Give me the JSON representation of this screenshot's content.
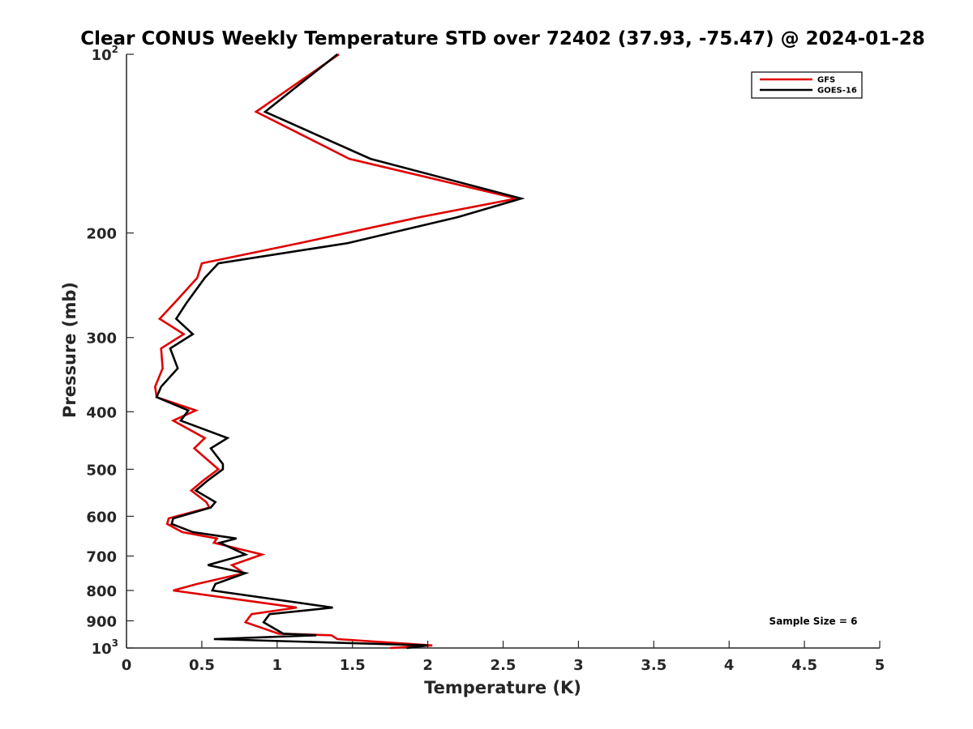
{
  "chart_data": {
    "type": "line",
    "title": "Clear CONUS Weekly Temperature STD over 72402 (37.93, -75.47) @ 2024-01-28",
    "xlabel": "Temperature (K)",
    "ylabel": "Pressure (mb)",
    "xlim": [
      0,
      5
    ],
    "ylim": [
      1000,
      100
    ],
    "y_scale": "log",
    "y_reversed": true,
    "grid": false,
    "legend_placement": "top-right",
    "annotation": "Sample Size = 6",
    "x_ticks": [
      {
        "value": 0,
        "label": "0"
      },
      {
        "value": 0.5,
        "label": "0.5"
      },
      {
        "value": 1,
        "label": "1"
      },
      {
        "value": 1.5,
        "label": "1.5"
      },
      {
        "value": 2,
        "label": "2"
      },
      {
        "value": 2.5,
        "label": "2.5"
      },
      {
        "value": 3,
        "label": "3"
      },
      {
        "value": 3.5,
        "label": "3.5"
      },
      {
        "value": 4,
        "label": "4"
      },
      {
        "value": 4.5,
        "label": "4.5"
      },
      {
        "value": 5,
        "label": "5"
      }
    ],
    "y_ticks": [
      {
        "value": 100,
        "label": "10",
        "sup": "2"
      },
      {
        "value": 200,
        "label": "200"
      },
      {
        "value": 300,
        "label": "300"
      },
      {
        "value": 400,
        "label": "400"
      },
      {
        "value": 500,
        "label": "500"
      },
      {
        "value": 600,
        "label": "600"
      },
      {
        "value": 700,
        "label": "700"
      },
      {
        "value": 800,
        "label": "800"
      },
      {
        "value": 900,
        "label": "900"
      },
      {
        "value": 1000,
        "label": "10",
        "sup": "3"
      }
    ],
    "series": [
      {
        "name": "GFS",
        "color": "#e00000",
        "points": [
          [
            1.41,
            100
          ],
          [
            0.86,
            125
          ],
          [
            1.48,
            150
          ],
          [
            2.59,
            175
          ],
          [
            1.95,
            188
          ],
          [
            1.15,
            208
          ],
          [
            0.5,
            225
          ],
          [
            0.47,
            238
          ],
          [
            0.32,
            262
          ],
          [
            0.22,
            279
          ],
          [
            0.38,
            296
          ],
          [
            0.23,
            313
          ],
          [
            0.24,
            338
          ],
          [
            0.19,
            363
          ],
          [
            0.2,
            378
          ],
          [
            0.46,
            398
          ],
          [
            0.31,
            414
          ],
          [
            0.52,
            443
          ],
          [
            0.45,
            461
          ],
          [
            0.57,
            490
          ],
          [
            0.61,
            500
          ],
          [
            0.51,
            522
          ],
          [
            0.43,
            543
          ],
          [
            0.53,
            568
          ],
          [
            0.55,
            580
          ],
          [
            0.28,
            605
          ],
          [
            0.27,
            618
          ],
          [
            0.37,
            638
          ],
          [
            0.6,
            654
          ],
          [
            0.58,
            665
          ],
          [
            0.9,
            696
          ],
          [
            0.7,
            725
          ],
          [
            0.78,
            748
          ],
          [
            0.47,
            780
          ],
          [
            0.31,
            800
          ],
          [
            1.13,
            855
          ],
          [
            0.83,
            877
          ],
          [
            0.79,
            905
          ],
          [
            1.01,
            946
          ],
          [
            1.36,
            952
          ],
          [
            1.4,
            966
          ],
          [
            2.03,
            990
          ],
          [
            1.75,
            1000
          ]
        ]
      },
      {
        "name": "GOES-16",
        "color": "#000000",
        "points": [
          [
            1.4,
            100
          ],
          [
            0.92,
            125
          ],
          [
            1.62,
            150
          ],
          [
            2.62,
            175
          ],
          [
            2.2,
            188
          ],
          [
            1.47,
            208
          ],
          [
            0.61,
            225
          ],
          [
            0.52,
            238
          ],
          [
            0.4,
            262
          ],
          [
            0.33,
            279
          ],
          [
            0.44,
            296
          ],
          [
            0.29,
            313
          ],
          [
            0.34,
            338
          ],
          [
            0.23,
            363
          ],
          [
            0.2,
            378
          ],
          [
            0.41,
            398
          ],
          [
            0.36,
            414
          ],
          [
            0.67,
            443
          ],
          [
            0.56,
            461
          ],
          [
            0.64,
            490
          ],
          [
            0.64,
            500
          ],
          [
            0.54,
            522
          ],
          [
            0.46,
            543
          ],
          [
            0.59,
            568
          ],
          [
            0.56,
            580
          ],
          [
            0.31,
            605
          ],
          [
            0.3,
            618
          ],
          [
            0.44,
            638
          ],
          [
            0.73,
            654
          ],
          [
            0.62,
            665
          ],
          [
            0.79,
            696
          ],
          [
            0.54,
            725
          ],
          [
            0.79,
            748
          ],
          [
            0.59,
            780
          ],
          [
            0.57,
            800
          ],
          [
            1.37,
            855
          ],
          [
            0.95,
            877
          ],
          [
            0.91,
            905
          ],
          [
            1.04,
            946
          ],
          [
            1.26,
            952
          ],
          [
            0.58,
            966
          ],
          [
            2.0,
            990
          ],
          [
            1.86,
            1000
          ]
        ]
      }
    ]
  }
}
